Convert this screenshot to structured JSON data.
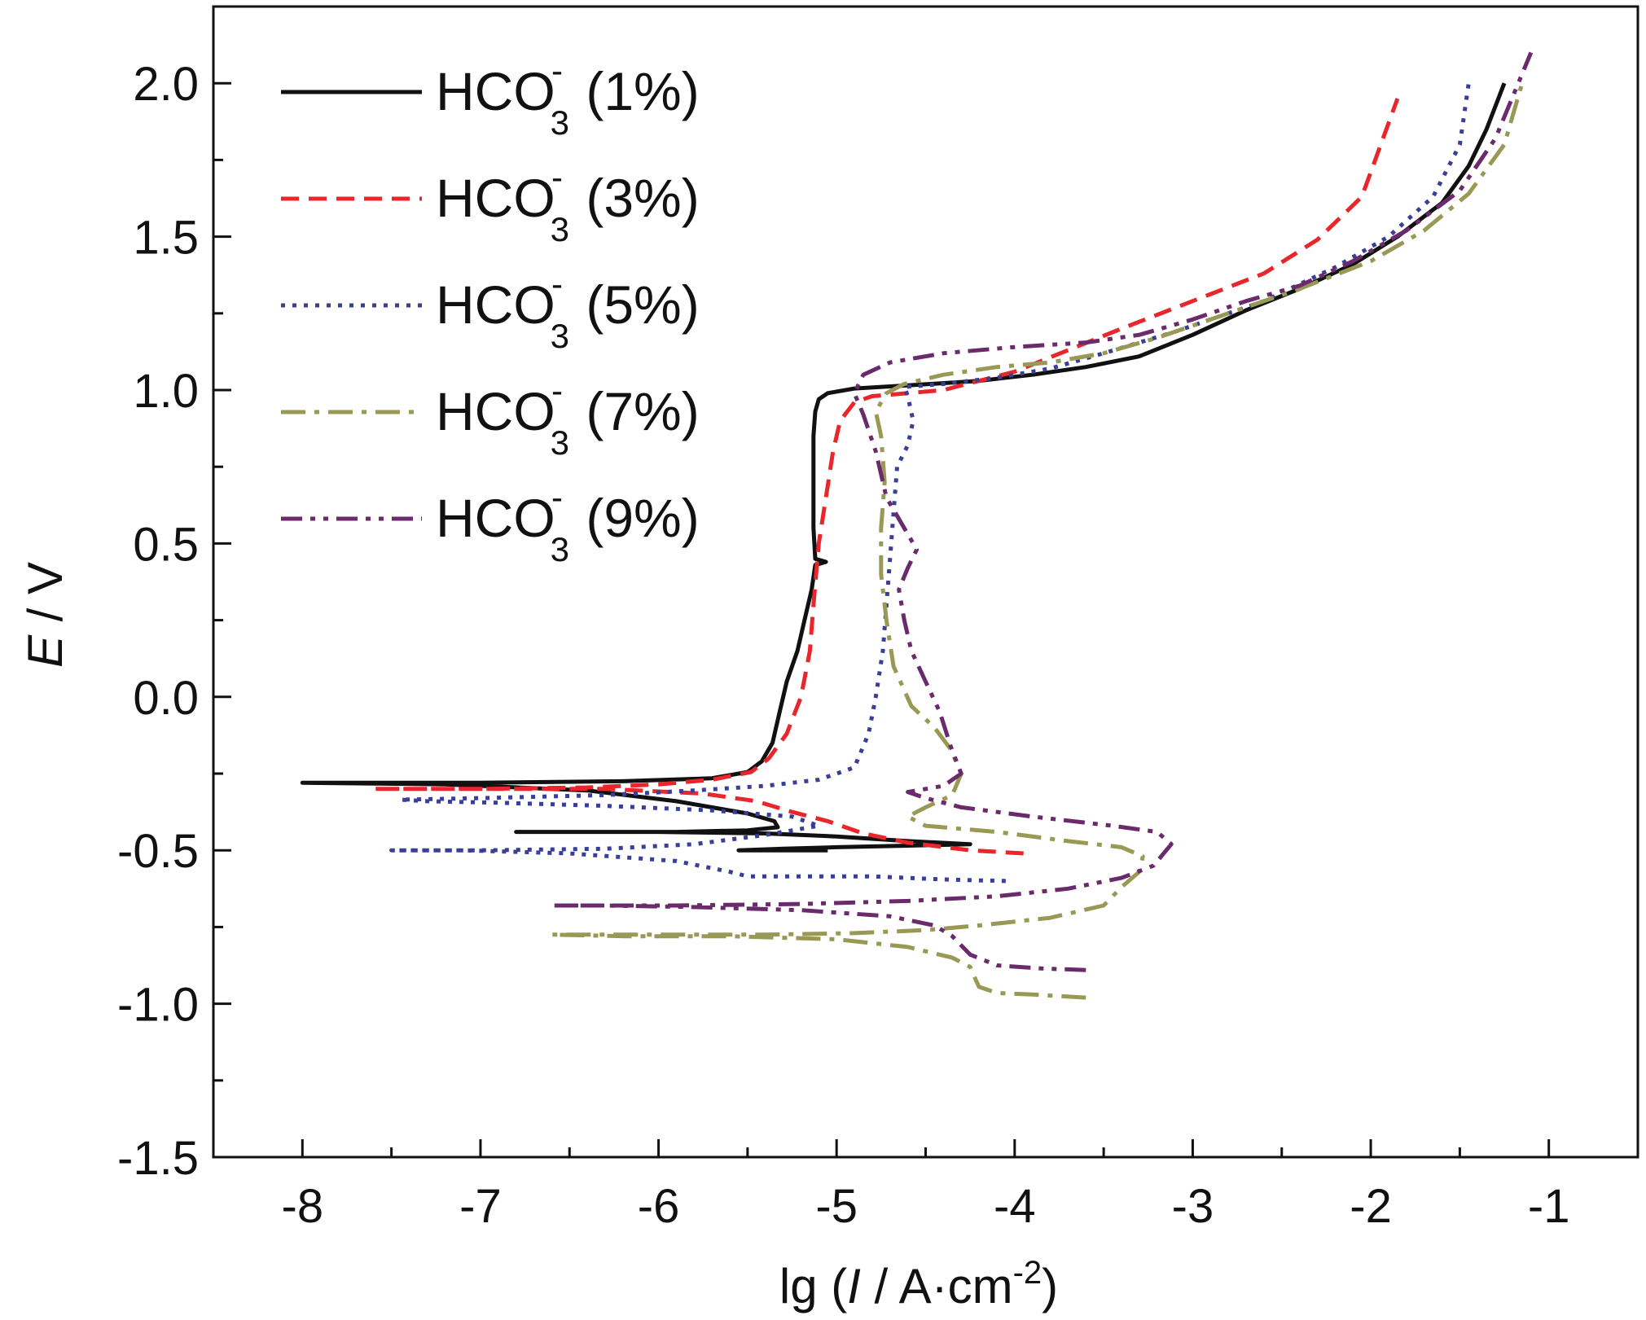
{
  "chart_data": {
    "type": "line",
    "title": "",
    "xlabel": {
      "pre": "lg (",
      "italic": "I",
      "mid": " / A·cm",
      "sup": "-2",
      "post": ")"
    },
    "ylabel": {
      "italic": "E",
      "rest": " / V"
    },
    "xlim": [
      -8.5,
      -0.5
    ],
    "ylim": [
      -1.5,
      2.25
    ],
    "x_ticks": [
      -8,
      -7,
      -6,
      -5,
      -4,
      -3,
      -2,
      -1
    ],
    "x_tick_labels": [
      "-8",
      "-7",
      "-6",
      "-5",
      "-4",
      "-3",
      "-2",
      "-1"
    ],
    "y_ticks": [
      -1.5,
      -1.0,
      -0.5,
      0.0,
      0.5,
      1.0,
      1.5,
      2.0
    ],
    "y_tick_labels": [
      "-1.5",
      "-1.0",
      "-0.5",
      "0.0",
      "0.5",
      "1.0",
      "1.5",
      "2.0"
    ],
    "legend_position": "top-left",
    "series": [
      {
        "name": "HCO3- (1%)",
        "label": {
          "base": "HCO",
          "sub": "3",
          "sup": "-",
          "pct": " (1%)"
        },
        "color": "#111111",
        "style": "solid",
        "points": [
          [
            -5.05,
            -0.5
          ],
          [
            -5.3,
            -0.5
          ],
          [
            -5.55,
            -0.5
          ],
          [
            -5.3,
            -0.495
          ],
          [
            -5.0,
            -0.49
          ],
          [
            -4.6,
            -0.485
          ],
          [
            -4.25,
            -0.48
          ],
          [
            -4.6,
            -0.47
          ],
          [
            -5.0,
            -0.455
          ],
          [
            -5.4,
            -0.445
          ],
          [
            -6.0,
            -0.44
          ],
          [
            -6.8,
            -0.44
          ],
          [
            -5.9,
            -0.44
          ],
          [
            -5.5,
            -0.435
          ],
          [
            -5.33,
            -0.425
          ],
          [
            -5.35,
            -0.405
          ],
          [
            -5.5,
            -0.38
          ],
          [
            -5.9,
            -0.34
          ],
          [
            -6.4,
            -0.305
          ],
          [
            -7.2,
            -0.285
          ],
          [
            -8.0,
            -0.28
          ],
          [
            -7.0,
            -0.28
          ],
          [
            -6.2,
            -0.275
          ],
          [
            -5.7,
            -0.265
          ],
          [
            -5.5,
            -0.245
          ],
          [
            -5.42,
            -0.21
          ],
          [
            -5.36,
            -0.15
          ],
          [
            -5.32,
            -0.05
          ],
          [
            -5.28,
            0.05
          ],
          [
            -5.22,
            0.15
          ],
          [
            -5.18,
            0.25
          ],
          [
            -5.14,
            0.35
          ],
          [
            -5.12,
            0.43
          ],
          [
            -5.06,
            0.44
          ],
          [
            -5.12,
            0.45
          ],
          [
            -5.13,
            0.55
          ],
          [
            -5.13,
            0.7
          ],
          [
            -5.13,
            0.85
          ],
          [
            -5.12,
            0.93
          ],
          [
            -5.1,
            0.97
          ],
          [
            -5.05,
            0.99
          ],
          [
            -4.9,
            1.005
          ],
          [
            -4.6,
            1.015
          ],
          [
            -4.2,
            1.03
          ],
          [
            -3.9,
            1.05
          ],
          [
            -3.6,
            1.075
          ],
          [
            -3.3,
            1.11
          ],
          [
            -3.0,
            1.18
          ],
          [
            -2.7,
            1.26
          ],
          [
            -2.4,
            1.33
          ],
          [
            -2.1,
            1.41
          ],
          [
            -1.85,
            1.5
          ],
          [
            -1.6,
            1.61
          ],
          [
            -1.45,
            1.73
          ],
          [
            -1.35,
            1.85
          ],
          [
            -1.25,
            2.0
          ]
        ]
      },
      {
        "name": "HCO3- (3%)",
        "label": {
          "base": "HCO",
          "sub": "3",
          "sup": "-",
          "pct": " (3%)"
        },
        "color": "#e8262b",
        "style": "dashed",
        "points": [
          [
            -3.95,
            -0.51
          ],
          [
            -4.25,
            -0.5
          ],
          [
            -4.6,
            -0.475
          ],
          [
            -4.85,
            -0.445
          ],
          [
            -5.05,
            -0.405
          ],
          [
            -5.25,
            -0.375
          ],
          [
            -5.45,
            -0.34
          ],
          [
            -5.75,
            -0.315
          ],
          [
            -6.3,
            -0.3
          ],
          [
            -7.0,
            -0.3
          ],
          [
            -7.6,
            -0.3
          ],
          [
            -7.0,
            -0.3
          ],
          [
            -6.4,
            -0.295
          ],
          [
            -6.0,
            -0.285
          ],
          [
            -5.7,
            -0.27
          ],
          [
            -5.48,
            -0.245
          ],
          [
            -5.38,
            -0.2
          ],
          [
            -5.28,
            -0.12
          ],
          [
            -5.2,
            0.0
          ],
          [
            -5.15,
            0.15
          ],
          [
            -5.13,
            0.3
          ],
          [
            -5.1,
            0.5
          ],
          [
            -5.06,
            0.65
          ],
          [
            -5.02,
            0.8
          ],
          [
            -4.98,
            0.9
          ],
          [
            -4.9,
            0.96
          ],
          [
            -4.8,
            0.98
          ],
          [
            -4.6,
            0.99
          ],
          [
            -4.4,
            1.0
          ],
          [
            -4.2,
            1.03
          ],
          [
            -4.0,
            1.06
          ],
          [
            -3.7,
            1.13
          ],
          [
            -3.4,
            1.2
          ],
          [
            -3.0,
            1.29
          ],
          [
            -2.6,
            1.38
          ],
          [
            -2.3,
            1.49
          ],
          [
            -2.05,
            1.63
          ],
          [
            -1.85,
            1.95
          ]
        ]
      },
      {
        "name": "HCO3- (5%)",
        "label": {
          "base": "HCO",
          "sub": "3",
          "sup": "-",
          "pct": " (5%)"
        },
        "color": "#3a3f96",
        "style": "dotted",
        "points": [
          [
            -4.05,
            -0.6
          ],
          [
            -4.4,
            -0.595
          ],
          [
            -4.8,
            -0.585
          ],
          [
            -5.2,
            -0.585
          ],
          [
            -5.5,
            -0.585
          ],
          [
            -5.6,
            -0.57
          ],
          [
            -5.9,
            -0.535
          ],
          [
            -6.5,
            -0.51
          ],
          [
            -7.1,
            -0.5
          ],
          [
            -7.5,
            -0.5
          ],
          [
            -7.0,
            -0.5
          ],
          [
            -6.3,
            -0.495
          ],
          [
            -5.8,
            -0.48
          ],
          [
            -5.4,
            -0.45
          ],
          [
            -5.1,
            -0.42
          ],
          [
            -5.25,
            -0.39
          ],
          [
            -5.7,
            -0.37
          ],
          [
            -6.3,
            -0.355
          ],
          [
            -6.9,
            -0.345
          ],
          [
            -7.3,
            -0.34
          ],
          [
            -7.45,
            -0.335
          ],
          [
            -7.0,
            -0.33
          ],
          [
            -6.3,
            -0.32
          ],
          [
            -5.8,
            -0.305
          ],
          [
            -5.4,
            -0.29
          ],
          [
            -5.1,
            -0.27
          ],
          [
            -4.9,
            -0.23
          ],
          [
            -4.82,
            -0.12
          ],
          [
            -4.78,
            0.0
          ],
          [
            -4.74,
            0.15
          ],
          [
            -4.72,
            0.3
          ],
          [
            -4.7,
            0.45
          ],
          [
            -4.68,
            0.6
          ],
          [
            -4.66,
            0.75
          ],
          [
            -4.6,
            0.82
          ],
          [
            -4.57,
            0.9
          ],
          [
            -4.6,
            0.98
          ],
          [
            -4.62,
            1.01
          ],
          [
            -4.4,
            1.02
          ],
          [
            -4.1,
            1.04
          ],
          [
            -3.8,
            1.07
          ],
          [
            -3.5,
            1.12
          ],
          [
            -3.1,
            1.19
          ],
          [
            -2.6,
            1.29
          ],
          [
            -2.2,
            1.4
          ],
          [
            -1.9,
            1.5
          ],
          [
            -1.65,
            1.63
          ],
          [
            -1.5,
            1.8
          ],
          [
            -1.45,
            2.0
          ]
        ]
      },
      {
        "name": "HCO3- (7%)",
        "label": {
          "base": "HCO",
          "sub": "3",
          "sup": "-",
          "pct": " (7%)"
        },
        "color": "#999955",
        "style": "dashdot",
        "points": [
          [
            -3.6,
            -0.98
          ],
          [
            -3.9,
            -0.97
          ],
          [
            -4.1,
            -0.965
          ],
          [
            -4.2,
            -0.945
          ],
          [
            -4.22,
            -0.92
          ],
          [
            -4.25,
            -0.88
          ],
          [
            -4.35,
            -0.85
          ],
          [
            -4.6,
            -0.815
          ],
          [
            -5.0,
            -0.79
          ],
          [
            -5.6,
            -0.78
          ],
          [
            -6.2,
            -0.78
          ],
          [
            -6.6,
            -0.775
          ],
          [
            -6.0,
            -0.775
          ],
          [
            -5.4,
            -0.775
          ],
          [
            -4.9,
            -0.77
          ],
          [
            -4.5,
            -0.76
          ],
          [
            -4.2,
            -0.745
          ],
          [
            -3.8,
            -0.72
          ],
          [
            -3.5,
            -0.68
          ],
          [
            -3.4,
            -0.62
          ],
          [
            -3.3,
            -0.57
          ],
          [
            -3.28,
            -0.52
          ],
          [
            -3.4,
            -0.49
          ],
          [
            -3.7,
            -0.47
          ],
          [
            -4.1,
            -0.44
          ],
          [
            -4.5,
            -0.42
          ],
          [
            -4.6,
            -0.39
          ],
          [
            -4.5,
            -0.36
          ],
          [
            -4.35,
            -0.32
          ],
          [
            -4.3,
            -0.25
          ],
          [
            -4.36,
            -0.17
          ],
          [
            -4.45,
            -0.1
          ],
          [
            -4.58,
            -0.03
          ],
          [
            -4.68,
            0.1
          ],
          [
            -4.72,
            0.25
          ],
          [
            -4.75,
            0.4
          ],
          [
            -4.75,
            0.55
          ],
          [
            -4.73,
            0.7
          ],
          [
            -4.75,
            0.85
          ],
          [
            -4.78,
            0.93
          ],
          [
            -4.72,
            0.99
          ],
          [
            -4.62,
            1.02
          ],
          [
            -4.4,
            1.05
          ],
          [
            -4.1,
            1.075
          ],
          [
            -3.8,
            1.09
          ],
          [
            -3.5,
            1.12
          ],
          [
            -3.2,
            1.17
          ],
          [
            -2.8,
            1.25
          ],
          [
            -2.4,
            1.33
          ],
          [
            -2.0,
            1.42
          ],
          [
            -1.7,
            1.52
          ],
          [
            -1.45,
            1.64
          ],
          [
            -1.25,
            1.8
          ],
          [
            -1.15,
            2.0
          ]
        ]
      },
      {
        "name": "HCO3- (9%)",
        "label": {
          "base": "HCO",
          "sub": "3",
          "sup": "-",
          "pct": " (9%)"
        },
        "color": "#6a2a6c",
        "style": "dashdotdot",
        "points": [
          [
            -3.6,
            -0.89
          ],
          [
            -3.85,
            -0.885
          ],
          [
            -4.1,
            -0.875
          ],
          [
            -4.25,
            -0.84
          ],
          [
            -4.35,
            -0.78
          ],
          [
            -4.45,
            -0.745
          ],
          [
            -4.7,
            -0.715
          ],
          [
            -5.2,
            -0.695
          ],
          [
            -5.8,
            -0.685
          ],
          [
            -6.3,
            -0.68
          ],
          [
            -6.6,
            -0.68
          ],
          [
            -5.9,
            -0.68
          ],
          [
            -5.2,
            -0.675
          ],
          [
            -4.6,
            -0.665
          ],
          [
            -4.1,
            -0.65
          ],
          [
            -3.7,
            -0.625
          ],
          [
            -3.4,
            -0.59
          ],
          [
            -3.22,
            -0.55
          ],
          [
            -3.12,
            -0.48
          ],
          [
            -3.2,
            -0.44
          ],
          [
            -3.45,
            -0.42
          ],
          [
            -3.9,
            -0.39
          ],
          [
            -4.3,
            -0.36
          ],
          [
            -4.5,
            -0.33
          ],
          [
            -4.6,
            -0.31
          ],
          [
            -4.4,
            -0.29
          ],
          [
            -4.3,
            -0.25
          ],
          [
            -4.36,
            -0.16
          ],
          [
            -4.42,
            -0.05
          ],
          [
            -4.5,
            0.05
          ],
          [
            -4.58,
            0.15
          ],
          [
            -4.62,
            0.25
          ],
          [
            -4.65,
            0.35
          ],
          [
            -4.6,
            0.42
          ],
          [
            -4.55,
            0.48
          ],
          [
            -4.62,
            0.55
          ],
          [
            -4.72,
            0.65
          ],
          [
            -4.78,
            0.8
          ],
          [
            -4.85,
            0.92
          ],
          [
            -4.9,
            0.99
          ],
          [
            -4.85,
            1.05
          ],
          [
            -4.7,
            1.09
          ],
          [
            -4.4,
            1.12
          ],
          [
            -4.0,
            1.14
          ],
          [
            -3.6,
            1.155
          ],
          [
            -3.3,
            1.18
          ],
          [
            -3.0,
            1.23
          ],
          [
            -2.7,
            1.29
          ],
          [
            -2.4,
            1.34
          ],
          [
            -2.1,
            1.42
          ],
          [
            -1.8,
            1.52
          ],
          [
            -1.5,
            1.65
          ],
          [
            -1.3,
            1.82
          ],
          [
            -1.1,
            2.1
          ]
        ]
      }
    ]
  }
}
